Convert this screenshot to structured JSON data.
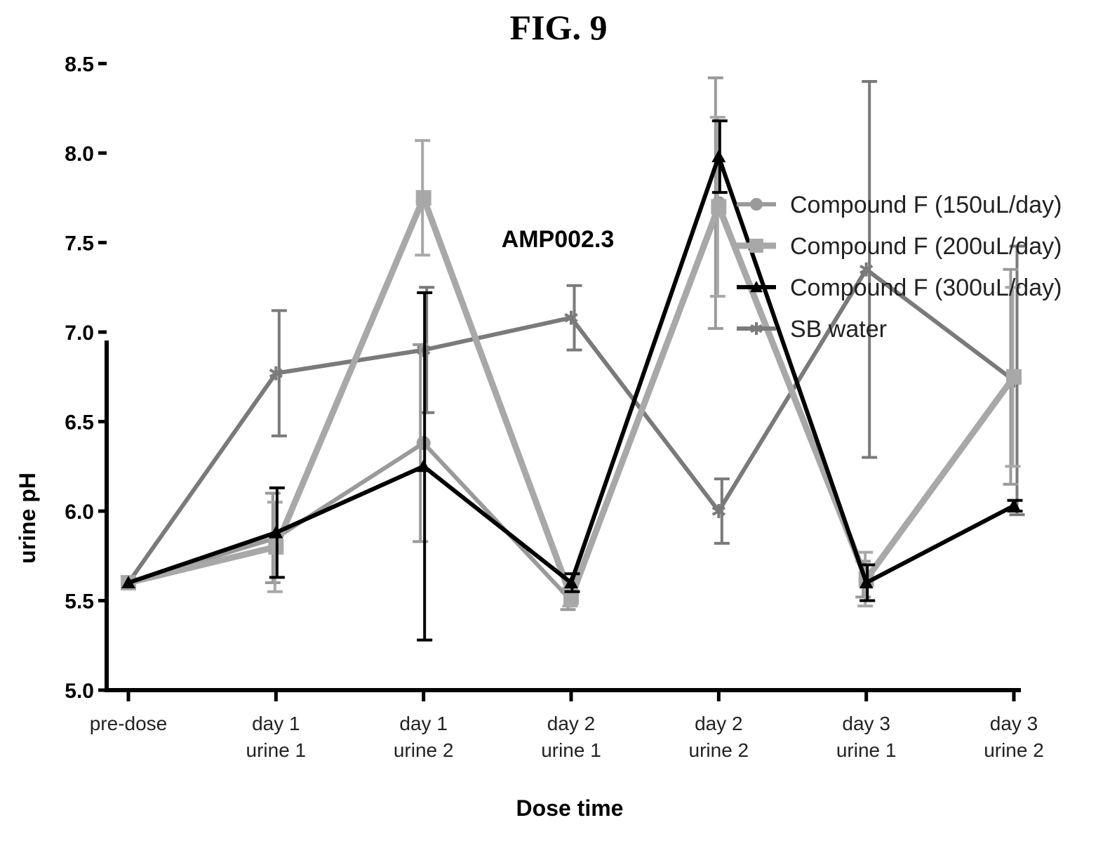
{
  "figure_label": "FIG. 9",
  "chart_data": {
    "type": "line",
    "title": "AMP002.3",
    "xlabel": "Dose time",
    "ylabel": "urine pH",
    "categories": [
      [
        "pre-dose"
      ],
      [
        "day 1",
        "urine 1"
      ],
      [
        "day 1",
        "urine 2"
      ],
      [
        "day 2",
        "urine 1"
      ],
      [
        "day 2",
        "urine 2"
      ],
      [
        "day 3",
        "urine 1"
      ],
      [
        "day 3",
        "urine 2"
      ]
    ],
    "ylim": [
      5.0,
      8.5
    ],
    "yticks": [
      "5.0",
      "5.5",
      "6.0",
      "6.5",
      "7.0",
      "7.5",
      "8.0",
      "8.5"
    ],
    "legend_position": "top-right",
    "grid": false,
    "series": [
      {
        "name": "Compound F (150uL/day)",
        "color": "#9a9a9a",
        "marker": "circle",
        "values": [
          5.6,
          5.85,
          6.38,
          5.5,
          7.72,
          5.62,
          6.75
        ],
        "errors": [
          0,
          0.25,
          0.55,
          0.05,
          0.7,
          0.1,
          0.6
        ]
      },
      {
        "name": "Compound F (200uL/day)",
        "color": "#a8a8a8",
        "marker": "square",
        "values": [
          5.6,
          5.8,
          7.75,
          5.52,
          7.7,
          5.62,
          6.75
        ],
        "errors": [
          0,
          0.25,
          0.32,
          0.05,
          0.5,
          0.15,
          0.5
        ]
      },
      {
        "name": "Compound F (300uL/day)",
        "color": "#000000",
        "marker": "triangle",
        "values": [
          5.6,
          5.88,
          6.25,
          5.6,
          7.98,
          5.6,
          6.03
        ],
        "errors": [
          0,
          0.25,
          0.97,
          0.05,
          0.2,
          0.1,
          0.03
        ]
      },
      {
        "name": "SB water",
        "color": "#7a7a7a",
        "marker": "star",
        "values": [
          5.6,
          6.77,
          6.9,
          7.08,
          6.0,
          7.35,
          6.73
        ],
        "errors": [
          0,
          0.35,
          0.35,
          0.18,
          0.18,
          1.05,
          0.75
        ]
      }
    ]
  }
}
